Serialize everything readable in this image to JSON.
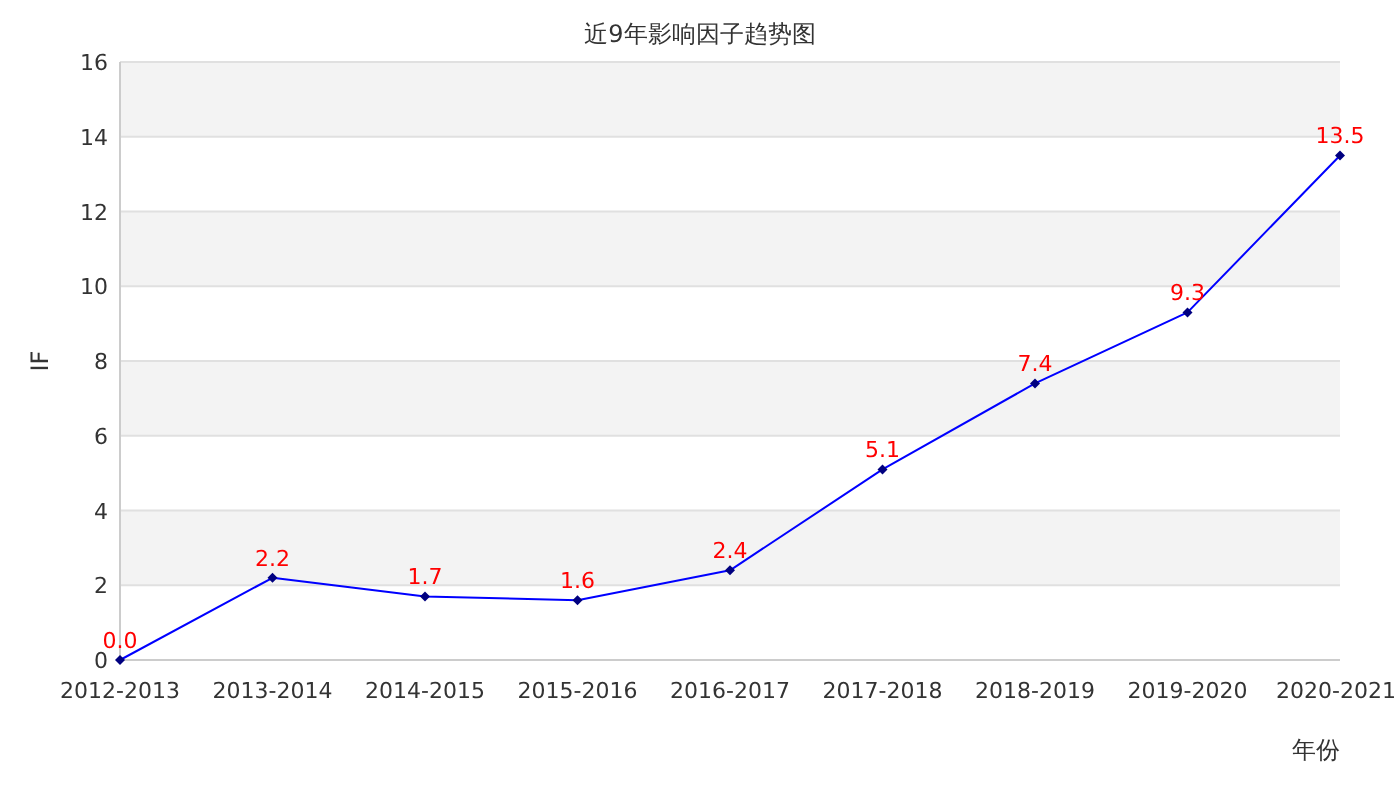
{
  "chart_data": {
    "type": "line",
    "title": "近9年影响因子趋势图",
    "xlabel": "年份",
    "ylabel": "IF",
    "categories": [
      "2012-2013",
      "2013-2014",
      "2014-2015",
      "2015-2016",
      "2016-2017",
      "2017-2018",
      "2018-2019",
      "2019-2020",
      "2020-2021"
    ],
    "series": [
      {
        "color": "#0000ff",
        "values": [
          0.0,
          2.2,
          1.7,
          1.6,
          2.4,
          5.1,
          7.4,
          9.3,
          13.5
        ],
        "value_labels": [
          "0.0",
          "2.2",
          "1.7",
          "1.6",
          "2.4",
          "5.1",
          "7.4",
          "9.3",
          "13.5"
        ]
      }
    ],
    "ylim": [
      0,
      16
    ],
    "yticks": [
      0,
      2,
      4,
      6,
      8,
      10,
      12,
      14,
      16
    ],
    "grid": "y",
    "marker": "diamond",
    "line_style": "solid"
  }
}
